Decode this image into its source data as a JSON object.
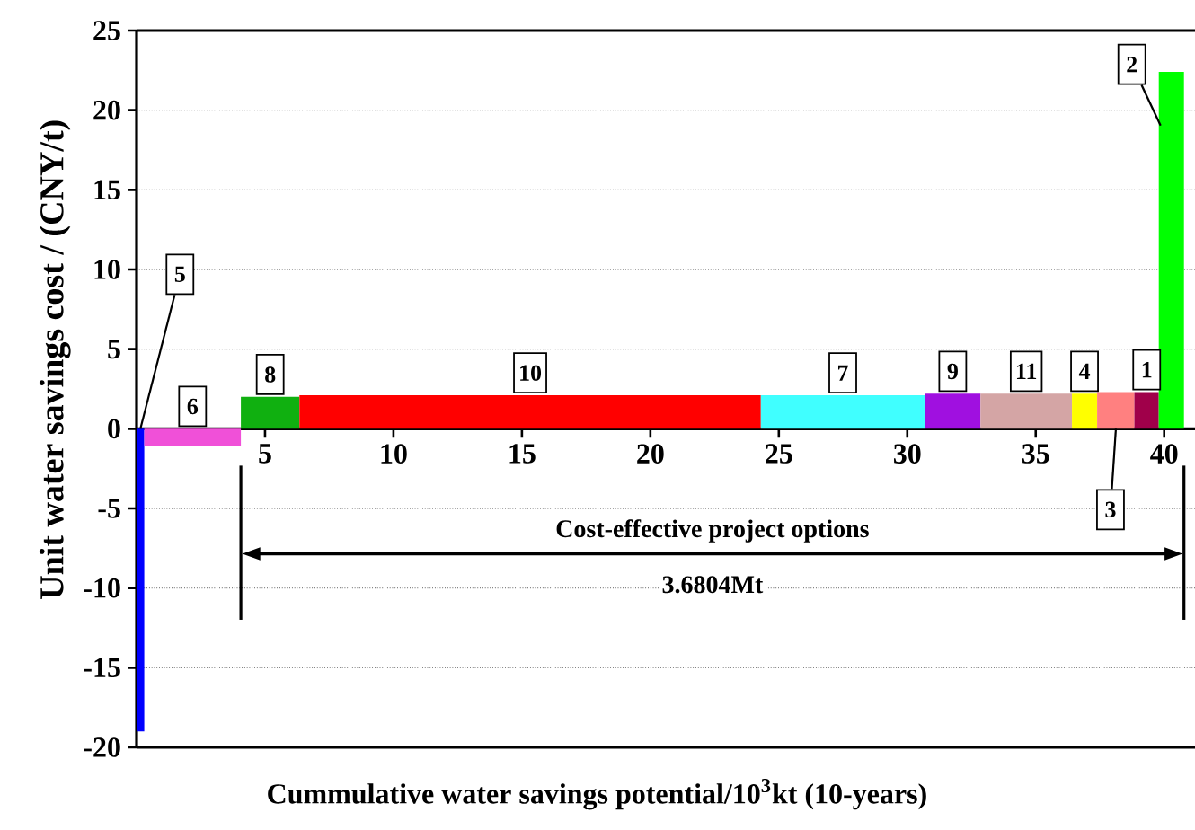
{
  "chart_data": {
    "type": "histogram",
    "xlabel": "Cummulative water savings potential/10$^{3}$kt (10-years)",
    "ylabel": "Unit water savings cost / (CNY/t)",
    "bins": [
      0,
      0.3,
      4.06,
      6.34,
      24.3,
      30.68,
      32.85,
      36.41,
      37.39,
      38.84,
      39.79,
      40.77
    ],
    "values": [
      -19,
      -1.1,
      2.0,
      2.1,
      2.1,
      2.2,
      2.2,
      2.2,
      2.3,
      2.3,
      22.4
    ],
    "colors": [
      "#0000ff",
      "#f050d8",
      "#10b010",
      "#ff0000",
      "#40ffff",
      "#a010e0",
      "#d4a5a5",
      "#ffff00",
      "#ff8080",
      "#a0004a",
      "#00ff00"
    ],
    "xlim": [
      0,
      41.2
    ],
    "xticks": [
      5,
      10,
      15,
      20,
      25,
      30,
      35,
      40
    ],
    "ylim": [
      -20,
      25
    ],
    "yticks": [
      -20,
      -15,
      -10,
      -5,
      0,
      5,
      10,
      15,
      20,
      25
    ],
    "grid": "y",
    "annotations": [
      {
        "text": "5",
        "x": 0.15,
        "y": 0
      },
      {
        "text": "6",
        "x": 2.18,
        "y": -1.1
      },
      {
        "text": "8",
        "x": 5.2,
        "y": 2.0
      },
      {
        "text": "10",
        "x": 15.32,
        "y": 2.1
      },
      {
        "text": "7",
        "x": 27.49,
        "y": 2.1
      },
      {
        "text": "9",
        "x": 31.77,
        "y": 2.2
      },
      {
        "text": "11",
        "x": 34.63,
        "y": 2.2
      },
      {
        "text": "4",
        "x": 36.9,
        "y": 2.2
      },
      {
        "text": "3",
        "x": 38.12,
        "y": 0
      },
      {
        "text": "1",
        "x": 39.32,
        "y": 2.3
      },
      {
        "text": "2",
        "x": 40.28,
        "y": 22.4
      },
      "Cost-effective project options",
      "3.6804Mt"
    ]
  }
}
